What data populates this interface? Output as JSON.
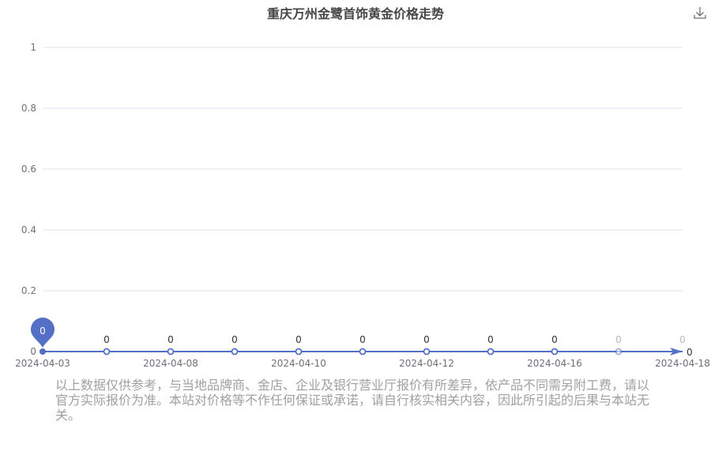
{
  "title": "重庆万州金鹭首饰黄金价格走势",
  "icons": {
    "download": "download-icon"
  },
  "disclaimer": "以上数据仅供参考，与当地品牌商、金店、企业及银行营业厅报价有所差异，依产品不同需另附工费，请以官方实际报价为准。本站对价格等不作任何保证或承诺，请自行核实相关内容，因此所引起的后果与本站无关。",
  "colors": {
    "series": "#5470c6",
    "grid": "#e0e6f1",
    "axis_text": "#6e7079",
    "title": "#464646",
    "disclaimer": "#a0a0a0"
  },
  "chart_data": {
    "type": "line",
    "xlabel": "",
    "ylabel": "",
    "ylim": [
      0,
      1
    ],
    "y_ticks": [
      "0",
      "0.2",
      "0.4",
      "0.6",
      "0.8",
      "1"
    ],
    "x_tick_labels": [
      "2024-04-03",
      "2024-04-08",
      "2024-04-10",
      "2024-04-12",
      "2024-04-16",
      "2024-04-18"
    ],
    "x": [
      "2024-04-03",
      "",
      "2024-04-08",
      "",
      "2024-04-10",
      "",
      "2024-04-12",
      "",
      "2024-04-16",
      "",
      "2024-04-18"
    ],
    "values": [
      0,
      0,
      0,
      0,
      0,
      0,
      0,
      0,
      0,
      0,
      0
    ],
    "point_labels": [
      "0",
      "0",
      "0",
      "0",
      "0",
      "0",
      "0",
      "0",
      "0",
      "0",
      "0"
    ],
    "marker_label": "0",
    "end_label": "0",
    "grid": true
  }
}
